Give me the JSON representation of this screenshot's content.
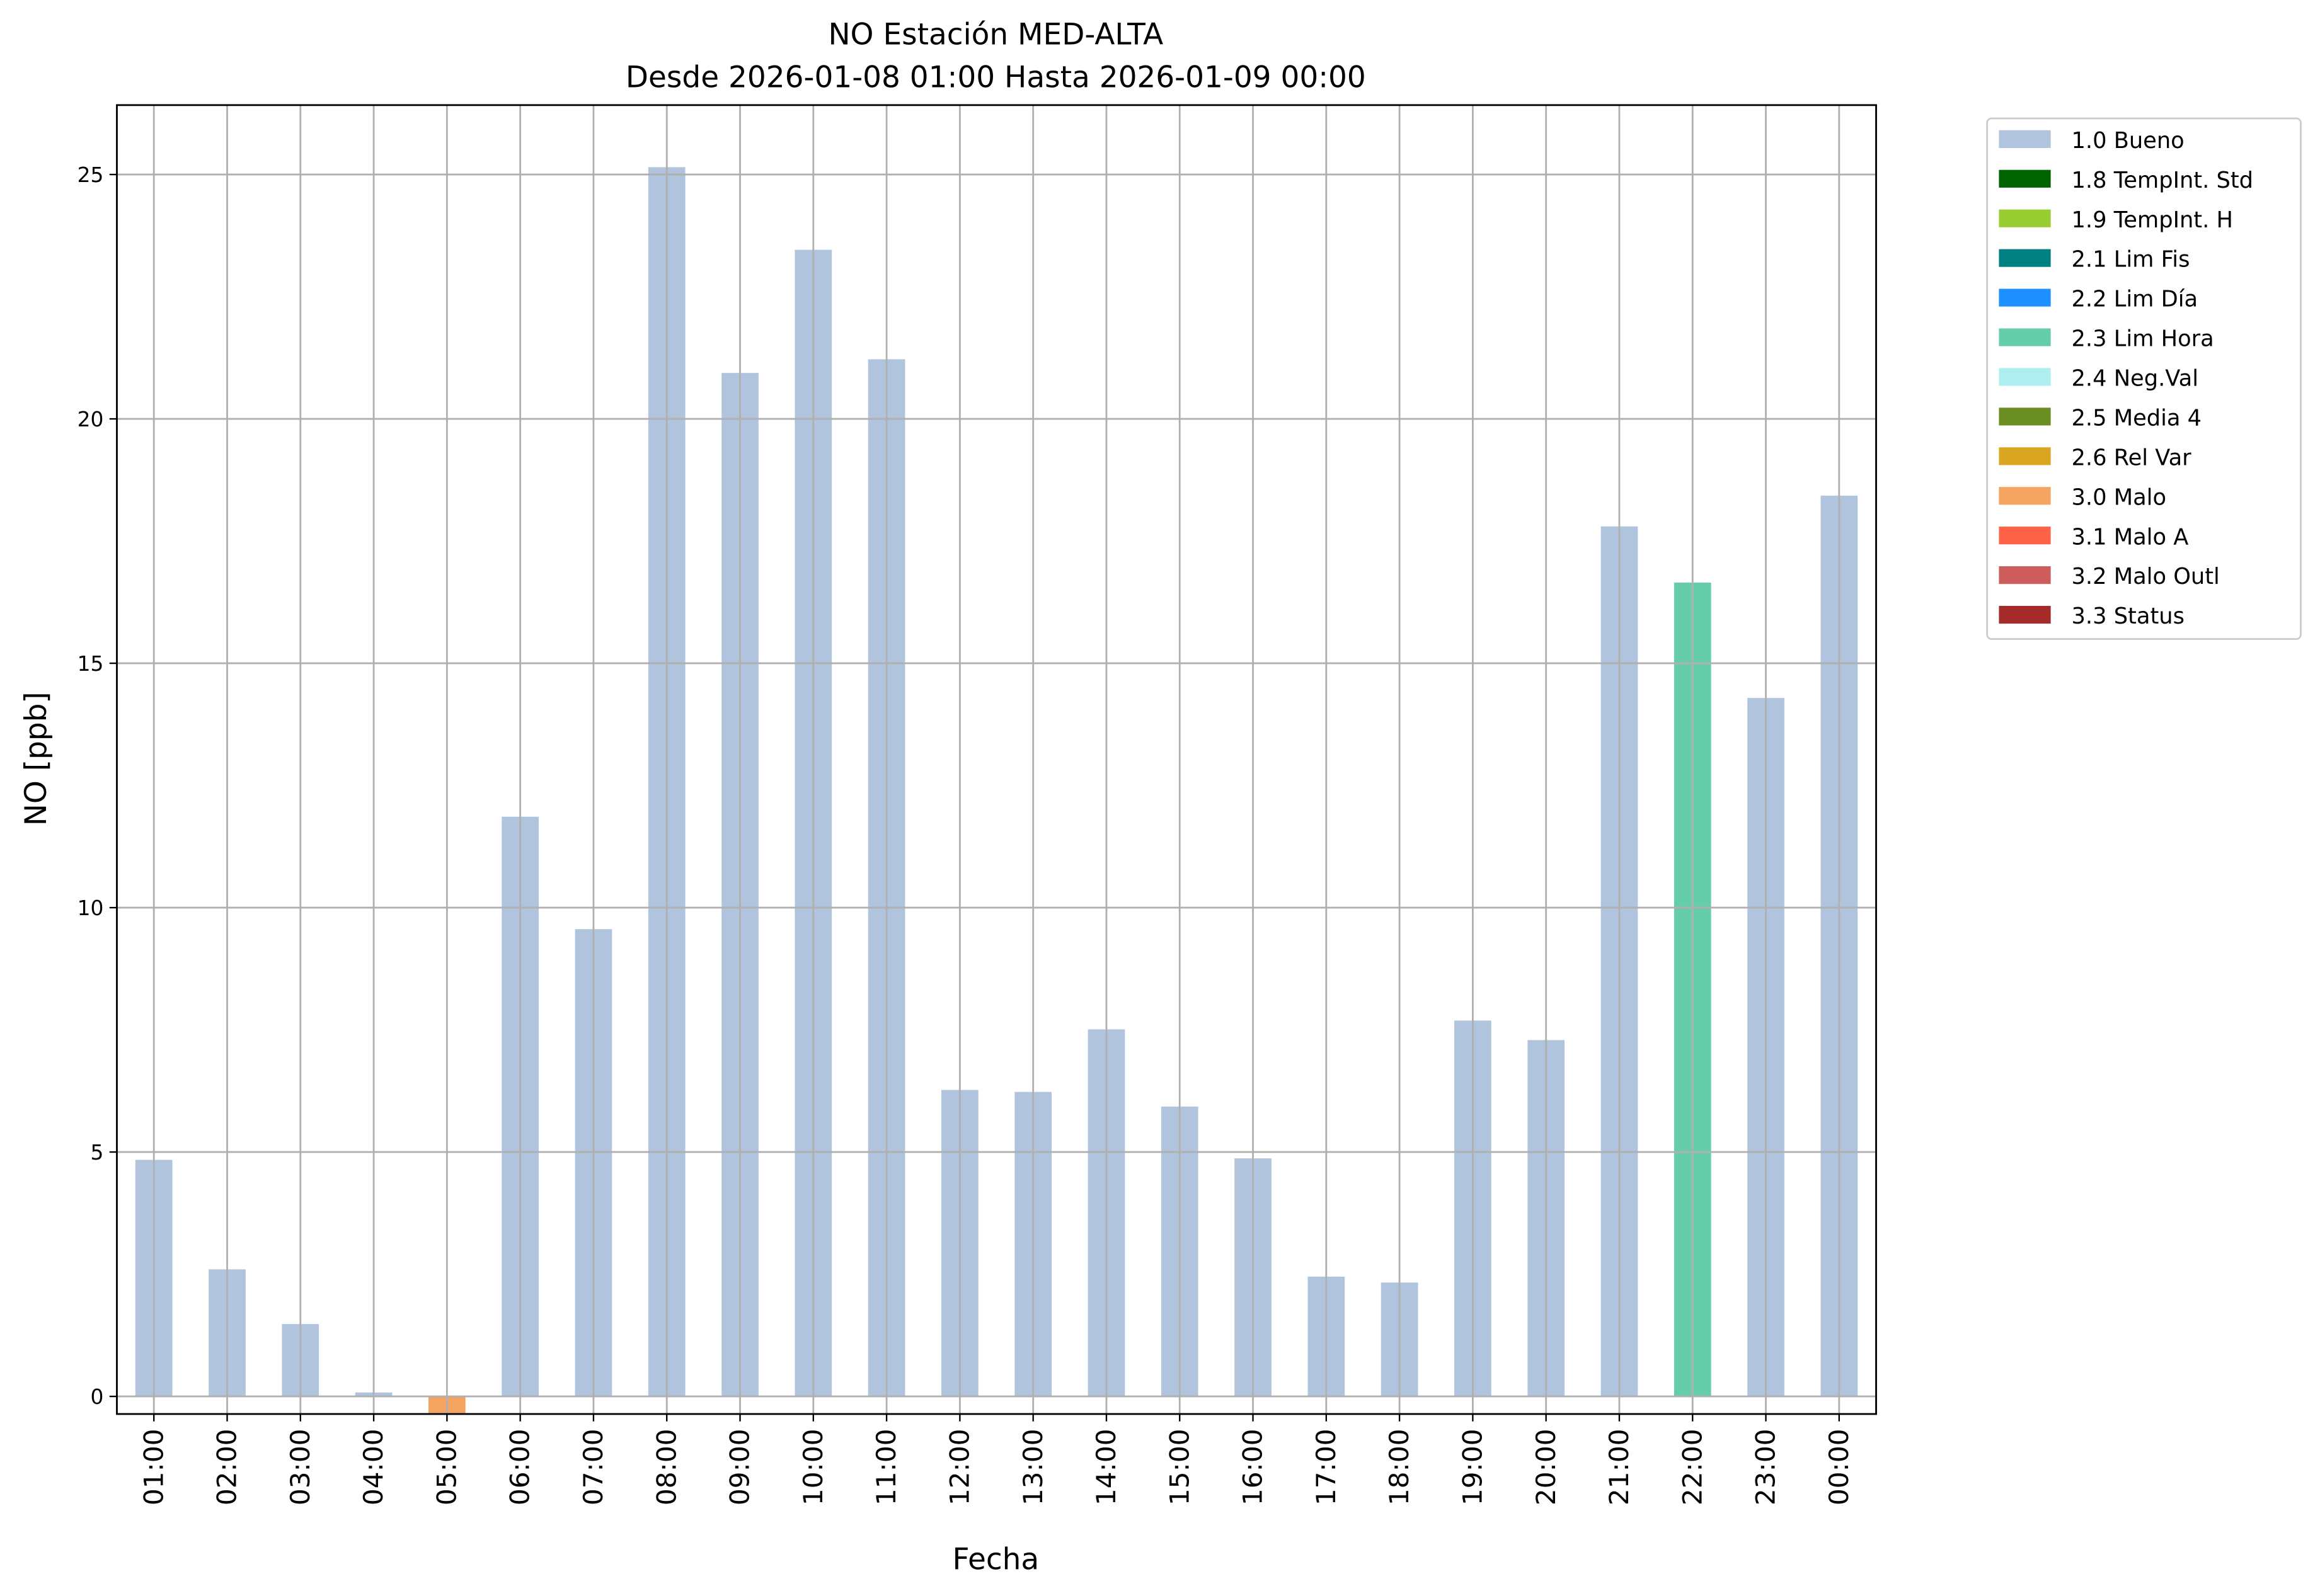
{
  "chart_data": {
    "type": "bar",
    "title": "NO Estación MED-ALTA",
    "subtitle": "Desde 2026-01-08 01:00 Hasta 2026-01-09 00:00",
    "xlabel": "Fecha",
    "ylabel": "NO [ppb]",
    "ylim": [
      -0.36,
      26.42
    ],
    "yticks": [
      0,
      5,
      10,
      15,
      20,
      25
    ],
    "grid": true,
    "legend_position": "outside-top-right",
    "categories": [
      "01:00",
      "02:00",
      "03:00",
      "04:00",
      "05:00",
      "06:00",
      "07:00",
      "08:00",
      "09:00",
      "10:00",
      "11:00",
      "12:00",
      "13:00",
      "14:00",
      "15:00",
      "16:00",
      "17:00",
      "18:00",
      "19:00",
      "20:00",
      "21:00",
      "22:00",
      "23:00",
      "00:00"
    ],
    "values": [
      4.84,
      2.6,
      1.48,
      0.08,
      -0.34,
      11.86,
      9.56,
      25.15,
      20.94,
      23.46,
      21.22,
      6.27,
      6.23,
      7.51,
      5.93,
      4.87,
      2.45,
      2.33,
      7.69,
      7.29,
      17.8,
      16.65,
      14.29,
      18.43
    ],
    "flags": [
      "1.0 Bueno",
      "1.0 Bueno",
      "1.0 Bueno",
      "1.0 Bueno",
      "3.0 Malo",
      "1.0 Bueno",
      "1.0 Bueno",
      "1.0 Bueno",
      "1.0 Bueno",
      "1.0 Bueno",
      "1.0 Bueno",
      "1.0 Bueno",
      "1.0 Bueno",
      "1.0 Bueno",
      "1.0 Bueno",
      "1.0 Bueno",
      "1.0 Bueno",
      "1.0 Bueno",
      "1.0 Bueno",
      "1.0 Bueno",
      "1.0 Bueno",
      "2.3 Lim Hora",
      "1.0 Bueno",
      "1.0 Bueno"
    ],
    "legend": [
      {
        "label": "1.0 Bueno",
        "color": "#b0c4de"
      },
      {
        "label": "1.8 TempInt. Std",
        "color": "#006400"
      },
      {
        "label": "1.9 TempInt. H",
        "color": "#9acd32"
      },
      {
        "label": "2.1 Lim Fis",
        "color": "#008080"
      },
      {
        "label": "2.2 Lim Día",
        "color": "#1e90ff"
      },
      {
        "label": "2.3 Lim Hora",
        "color": "#66cdaa"
      },
      {
        "label": "2.4 Neg.Val",
        "color": "#afeeee"
      },
      {
        "label": "2.5 Media 4",
        "color": "#6b8e23"
      },
      {
        "label": "2.6 Rel Var",
        "color": "#daa520"
      },
      {
        "label": "3.0 Malo",
        "color": "#f4a460"
      },
      {
        "label": "3.1 Malo A",
        "color": "#ff6347"
      },
      {
        "label": "3.2 Malo Outl",
        "color": "#cd5c5c"
      },
      {
        "label": "3.3 Status",
        "color": "#a52a2a"
      }
    ]
  }
}
